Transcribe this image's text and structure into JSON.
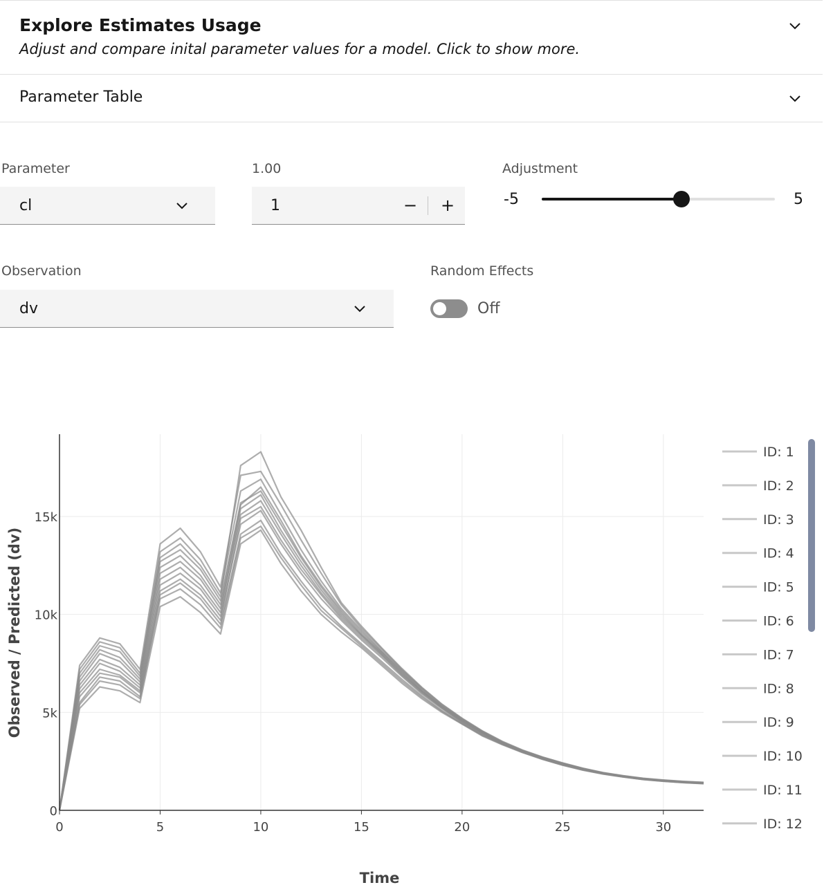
{
  "accordion": {
    "explore_title": "Explore Estimates Usage",
    "explore_subtitle": "Adjust and compare inital parameter values for a model. Click to show more.",
    "table_title": "Parameter Table"
  },
  "parameter": {
    "label": "Parameter",
    "value": "cl"
  },
  "value_input": {
    "label": "1.00",
    "value": "1",
    "decrement": "−",
    "increment": "+"
  },
  "adjustment": {
    "label": "Adjustment",
    "min_label": "-5",
    "max_label": "5",
    "min": -5,
    "max": 5,
    "value": 1
  },
  "observation": {
    "label": "Observation",
    "value": "dv"
  },
  "random_effects": {
    "label": "Random Effects",
    "state": "Off"
  },
  "colors": {
    "text": "#161616",
    "muted": "#525252",
    "field_bg": "#f4f4f4",
    "series": "#8a8a8a",
    "legend_line": "#c8c8c8",
    "scrollbar": "#7f8aa3"
  },
  "chart_data": {
    "type": "line",
    "xlabel": "Time",
    "ylabel": "Observed / Predicted (dv)",
    "xlim": [
      0,
      32
    ],
    "ylim": [
      0,
      19200
    ],
    "x_ticks": [
      0,
      5,
      10,
      15,
      20,
      25,
      30
    ],
    "y_ticks": [
      0,
      5000,
      10000,
      15000
    ],
    "y_tick_labels": [
      "0",
      "5k",
      "10k",
      "15k"
    ],
    "grid": true,
    "legend_placement": "right",
    "x": [
      0,
      1,
      2,
      3,
      4,
      5,
      6,
      7,
      8,
      9,
      10,
      11,
      12,
      13,
      14,
      15,
      16,
      17,
      18,
      19,
      20,
      21,
      22,
      23,
      24,
      25,
      26,
      27,
      28,
      29,
      30,
      31,
      32
    ],
    "series": [
      {
        "name": "ID: 1",
        "values": [
          0,
          5200,
          6300,
          6100,
          5500,
          10400,
          10900,
          10100,
          9000,
          13600,
          14300,
          12600,
          11200,
          10000,
          9100,
          8300,
          7400,
          6500,
          5700,
          5000,
          4400,
          3800,
          3350,
          2950,
          2600,
          2300,
          2050,
          1850,
          1700,
          1570,
          1480,
          1410,
          1360
        ]
      },
      {
        "name": "ID: 2",
        "values": [
          0,
          5500,
          6800,
          6600,
          5800,
          11000,
          11600,
          10800,
          9500,
          14100,
          14800,
          13100,
          11700,
          10400,
          9400,
          8500,
          7600,
          6700,
          5850,
          5100,
          4450,
          3850,
          3380,
          2970,
          2620,
          2320,
          2070,
          1870,
          1710,
          1580,
          1490,
          1420,
          1370
        ]
      },
      {
        "name": "ID: 3",
        "values": [
          0,
          6000,
          7200,
          6900,
          6100,
          11500,
          12100,
          11300,
          9900,
          14600,
          15300,
          13600,
          12100,
          10800,
          9700,
          8700,
          7800,
          6850,
          5950,
          5200,
          4500,
          3900,
          3400,
          2990,
          2640,
          2340,
          2090,
          1880,
          1720,
          1590,
          1500,
          1430,
          1380
        ]
      },
      {
        "name": "ID: 4",
        "values": [
          0,
          6400,
          7700,
          7300,
          6400,
          12100,
          12700,
          11800,
          10300,
          15100,
          15800,
          14100,
          12500,
          11100,
          9900,
          8900,
          7950,
          6950,
          6050,
          5250,
          4550,
          3950,
          3430,
          3010,
          2660,
          2360,
          2100,
          1890,
          1730,
          1600,
          1510,
          1440,
          1390
        ]
      },
      {
        "name": "ID: 5",
        "values": [
          0,
          6800,
          8200,
          7800,
          6700,
          12700,
          13300,
          12300,
          10700,
          15700,
          16300,
          14600,
          12900,
          11400,
          10100,
          9000,
          8050,
          7050,
          6100,
          5300,
          4600,
          3980,
          3450,
          3030,
          2680,
          2380,
          2120,
          1900,
          1740,
          1610,
          1520,
          1450,
          1400
        ]
      },
      {
        "name": "ID: 6",
        "values": [
          0,
          7200,
          8600,
          8300,
          7000,
          13200,
          13900,
          12800,
          11100,
          16300,
          16900,
          15100,
          13300,
          11700,
          10300,
          9200,
          8150,
          7150,
          6200,
          5350,
          4650,
          4020,
          3480,
          3050,
          2700,
          2400,
          2130,
          1910,
          1750,
          1620,
          1530,
          1460,
          1410
        ]
      },
      {
        "name": "ID: 7",
        "values": [
          0,
          5800,
          7000,
          6800,
          6000,
          11200,
          11800,
          11000,
          9700,
          14900,
          15500,
          13800,
          12300,
          11000,
          9800,
          8800,
          7900,
          6900,
          6000,
          5220,
          4520,
          3920,
          3410,
          3000,
          2650,
          2350,
          2095,
          1885,
          1725,
          1595,
          1505,
          1435,
          1385
        ]
      },
      {
        "name": "ID: 8",
        "values": [
          0,
          6200,
          7500,
          7100,
          6250,
          11800,
          12400,
          11500,
          10100,
          15400,
          16100,
          14300,
          12700,
          11250,
          10000,
          8950,
          8000,
          7000,
          6080,
          5280,
          4580,
          3960,
          3440,
          3020,
          2670,
          2370,
          2110,
          1895,
          1735,
          1605,
          1515,
          1445,
          1395
        ]
      },
      {
        "name": "ID: 9",
        "values": [
          0,
          7400,
          8800,
          8500,
          7200,
          13600,
          14400,
          13200,
          11400,
          17100,
          17300,
          15600,
          13800,
          12100,
          10500,
          9300,
          8250,
          7200,
          6250,
          5400,
          4680,
          4040,
          3500,
          3060,
          2710,
          2410,
          2140,
          1920,
          1760,
          1630,
          1540,
          1470,
          1420
        ]
      },
      {
        "name": "ID: 10",
        "values": [
          0,
          5400,
          6600,
          6400,
          5700,
          10800,
          11300,
          10500,
          9300,
          13900,
          14500,
          12900,
          11500,
          10200,
          9300,
          8400,
          7500,
          6600,
          5780,
          5050,
          4420,
          3830,
          3370,
          2960,
          2610,
          2310,
          2060,
          1860,
          1705,
          1575,
          1485,
          1415,
          1365
        ]
      },
      {
        "name": "ID: 11",
        "values": [
          0,
          6600,
          8000,
          7600,
          6550,
          12400,
          13000,
          12000,
          10500,
          15600,
          16500,
          14800,
          13000,
          11500,
          10200,
          9100,
          8100,
          7100,
          6150,
          5320,
          4620,
          4000,
          3460,
          3040,
          2690,
          2390,
          2125,
          1905,
          1745,
          1615,
          1525,
          1455,
          1405
        ]
      },
      {
        "name": "ID: 12",
        "values": [
          0,
          7000,
          8400,
          8100,
          6850,
          12900,
          13600,
          12500,
          10900,
          17600,
          18300,
          16000,
          14300,
          12400,
          10600,
          9400,
          8300,
          7250,
          6280,
          5420,
          4700,
          4060,
          3520,
          3080,
          2720,
          2420,
          2150,
          1930,
          1770,
          1640,
          1550,
          1480,
          1430
        ]
      }
    ]
  }
}
